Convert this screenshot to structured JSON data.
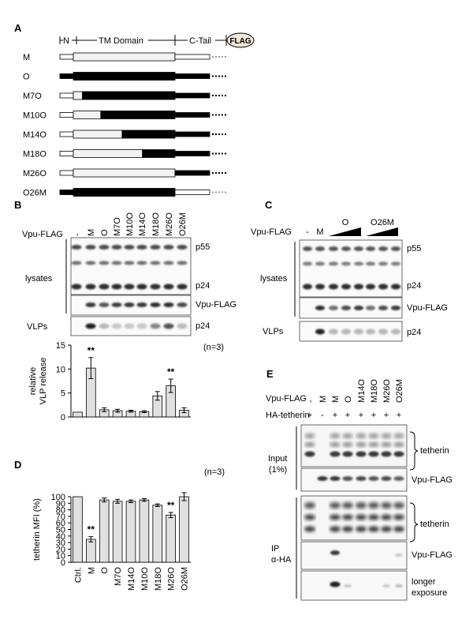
{
  "panels": {
    "A": {
      "label": "A",
      "header": {
        "n": "N",
        "tm": "TM Domain",
        "ctail": "C-Tail",
        "flag": "FLAG"
      },
      "constructs": [
        {
          "name": "M",
          "tm_open_fraction": 1.0,
          "black_tail": false
        },
        {
          "name": "O",
          "tm_open_fraction": 0.0,
          "black_tail": true
        },
        {
          "name": "M7O",
          "tm_open_fraction": 0.09,
          "black_tail": true
        },
        {
          "name": "M10O",
          "tm_open_fraction": 0.27,
          "black_tail": true
        },
        {
          "name": "M14O",
          "tm_open_fraction": 0.48,
          "black_tail": true
        },
        {
          "name": "M18O",
          "tm_open_fraction": 0.68,
          "black_tail": true
        },
        {
          "name": "M26O",
          "tm_open_fraction": 1.0,
          "black_tail": true
        },
        {
          "name": "O26M",
          "tm_open_fraction": 0.0,
          "black_tail": false
        }
      ]
    },
    "B": {
      "label": "B",
      "lane_header": "Vpu-FLAG",
      "lanes": [
        "-",
        "M",
        "O",
        "M7O",
        "M10O",
        "M14O",
        "M18O",
        "M26O",
        "O26M"
      ],
      "group_lysates": "lysates",
      "group_vlps": "VLPs",
      "band_labels": {
        "p55": "p55",
        "p24": "p24",
        "vpu": "Vpu-FLAG",
        "vlp_p24": "p24"
      }
    },
    "C": {
      "label": "C",
      "lane_header": "Vpu-FLAG",
      "lanes": [
        "-",
        "M"
      ],
      "titration_groups": [
        "O",
        "O26M"
      ],
      "group_lysates": "lysates",
      "group_vlps": "VLPs",
      "band_labels": {
        "p55": "p55",
        "p24": "p24",
        "vpu": "Vpu-FLAG",
        "vlp_p24": "p24"
      }
    },
    "D": {
      "label": "D",
      "n_label": "(n=3)"
    },
    "E": {
      "label": "E",
      "row_vpu": "Vpu-FLAG",
      "row_ha": "HA-tetherin",
      "lanes": [
        "-",
        "M",
        "M",
        "O",
        "M14O",
        "M18O",
        "M26O",
        "O26M"
      ],
      "ha_signs": [
        "+",
        "-",
        "+",
        "+",
        "+",
        "+",
        "+",
        "+"
      ],
      "group_input": [
        "Input",
        "(1%)"
      ],
      "group_ip": [
        "IP",
        "α-HA"
      ],
      "band_labels": {
        "tetherin": "tetherin",
        "vpu": "Vpu-FLAG",
        "tetherin_ip": "tetherin",
        "vpu_ip": "Vpu-FLAG",
        "longer": [
          "longer",
          "exposure"
        ]
      }
    }
  },
  "chart_data": [
    {
      "type": "bar",
      "panel": "B",
      "categories": [
        "-",
        "M",
        "O",
        "M7O",
        "M10O",
        "M14O",
        "M18O",
        "M26O",
        "O26M"
      ],
      "values": [
        1,
        10.2,
        1.5,
        1.3,
        1.2,
        1.1,
        4.4,
        6.5,
        1.4
      ],
      "errors": [
        0,
        2.2,
        0.4,
        0.3,
        0.2,
        0.2,
        0.9,
        1.4,
        0.5
      ],
      "significance": [
        "",
        "**",
        "",
        "",
        "",
        "",
        "",
        "**",
        ""
      ],
      "ylabel": "relative VLP release",
      "ylim": [
        0,
        15
      ],
      "yticks": [
        0,
        5,
        10,
        15
      ],
      "n_label": "(n=3)"
    },
    {
      "type": "bar",
      "panel": "D",
      "categories": [
        "Ctrl.",
        "M",
        "O",
        "M7O",
        "M14O",
        "M10O",
        "M18O",
        "M26O",
        "O26M"
      ],
      "values": [
        100,
        35,
        95,
        93,
        93,
        95,
        87,
        72,
        100
      ],
      "errors": [
        0,
        4,
        3,
        3,
        2,
        2,
        2,
        4,
        6
      ],
      "significance": [
        "",
        "**",
        "",
        "",
        "",
        "",
        "",
        "**",
        ""
      ],
      "ylabel": "tetherin MFI (%)",
      "ylim": [
        0,
        100
      ],
      "yticks": [
        0,
        10,
        20,
        30,
        40,
        50,
        60,
        70,
        80,
        90,
        100
      ]
    }
  ]
}
